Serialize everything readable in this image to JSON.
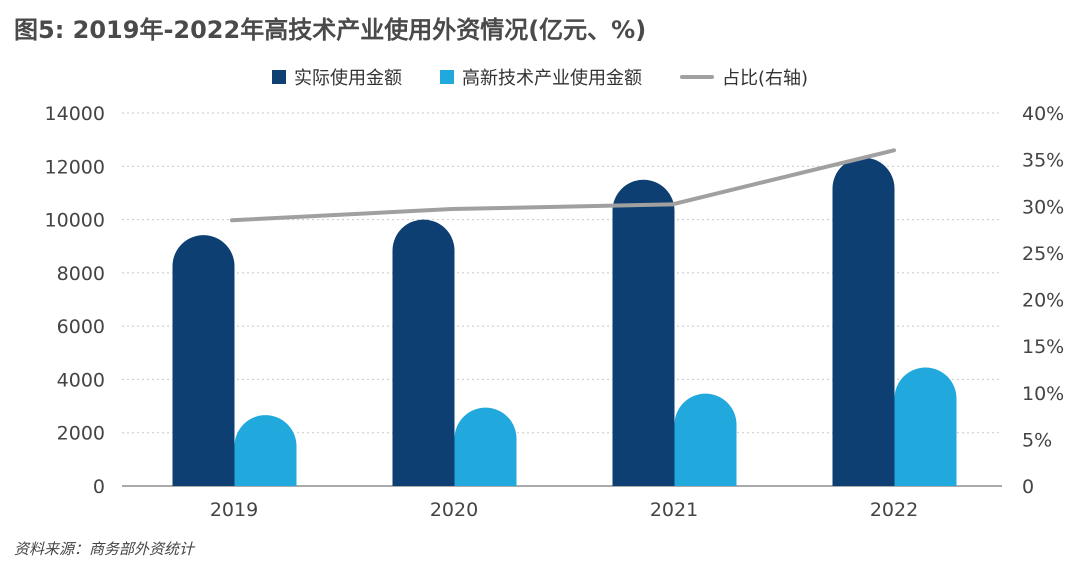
{
  "title": "图5: 2019年-2022年高技术产业使用外资情况(亿元、%)",
  "source": "资料来源：商务部外资统计",
  "colors": {
    "actual": "#0d3f73",
    "hightech": "#21a8dc",
    "ratio": "#a0a0a0",
    "grid": "#c8c8c8",
    "axis": "#777777"
  },
  "chart_data": {
    "type": "bar",
    "categories": [
      "2019",
      "2020",
      "2021",
      "2022"
    ],
    "series": [
      {
        "name": "实际使用金额",
        "type": "bar",
        "axis": "left",
        "values": [
          9415,
          10000,
          11494,
          12327
        ]
      },
      {
        "name": "高新技术产业使用金额",
        "type": "bar",
        "axis": "left",
        "values": [
          2660,
          2943,
          3467,
          4449
        ]
      },
      {
        "name": "占比(右轴)",
        "type": "line",
        "axis": "right",
        "values": [
          28.5,
          29.7,
          30.2,
          36.0
        ]
      }
    ],
    "y_left": {
      "ylim": [
        0,
        14000
      ],
      "ticks": [
        "0",
        "2000",
        "4000",
        "6000",
        "8000",
        "10000",
        "12000",
        "14000"
      ]
    },
    "y_right": {
      "ylim": [
        0,
        40
      ],
      "ticks": [
        "0",
        "5%",
        "10%",
        "15%",
        "20%",
        "25%",
        "30%",
        "35%",
        "40%"
      ]
    },
    "grid": true,
    "legend_position": "top-center"
  }
}
